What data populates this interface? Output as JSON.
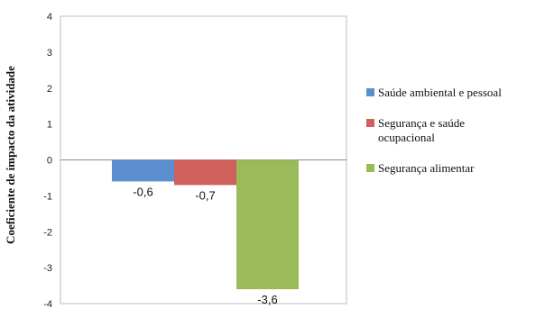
{
  "chart_data": {
    "type": "bar",
    "ylabel": "Coeficiente de impacto da atividade",
    "ylim": [
      -4,
      4
    ],
    "yticks": [
      4,
      3,
      2,
      1,
      0,
      -1,
      -2,
      -3,
      -4
    ],
    "grid": false,
    "legend_position": "right",
    "series": [
      {
        "name": "Saúde ambiental e pessoal",
        "value": -0.6,
        "label": "-0,6",
        "color": "#5b8fcf"
      },
      {
        "name": "Segurança e saúde ocupacional",
        "value": -0.7,
        "label": "-0,7",
        "color": "#d0605c"
      },
      {
        "name": "Segurança alimentar",
        "value": -3.6,
        "label": "-3,6",
        "color": "#9bbb59"
      }
    ]
  },
  "legend": {
    "items": [
      {
        "line1": "Saúde ambiental e pessoal",
        "line2": ""
      },
      {
        "line1": "Segurança e saúde",
        "line2": "ocupacional"
      },
      {
        "line1": "Segurança alimentar",
        "line2": ""
      }
    ]
  }
}
